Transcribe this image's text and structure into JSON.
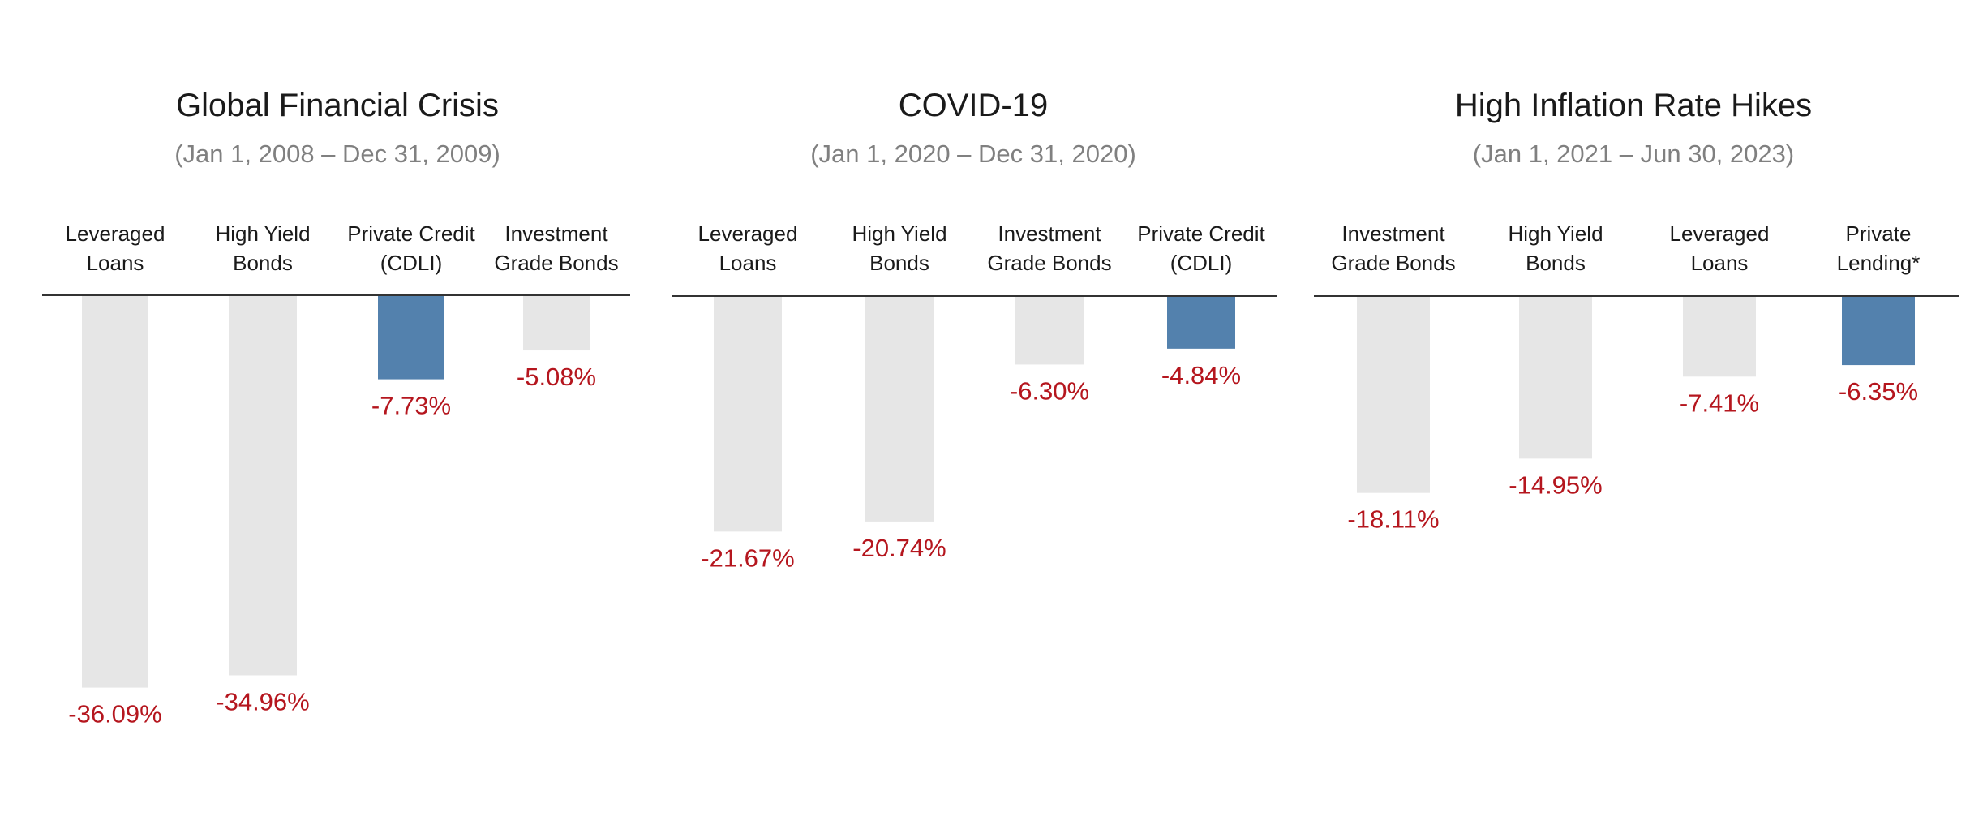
{
  "colors": {
    "highlight_bar": "#5381ad",
    "other_bar": "#e6e6e6",
    "value_label": "#b5161e",
    "title": "#1a1a1a",
    "subtitle": "#808080",
    "baseline": "#333333"
  },
  "chart_data": [
    {
      "type": "bar",
      "title": "Global Financial Crisis",
      "subtitle": "(Jan 1, 2008 – Dec 31, 2009)",
      "categories": [
        [
          "Leveraged",
          "Loans"
        ],
        [
          "High Yield",
          "Bonds"
        ],
        [
          "Private Credit",
          "(CDLI)"
        ],
        [
          "Investment",
          "Grade Bonds"
        ]
      ],
      "values": [
        -36.09,
        -34.96,
        -7.73,
        -5.08
      ],
      "value_labels": [
        "-36.09%",
        "-34.96%",
        "-7.73%",
        "-5.08%"
      ],
      "highlight_index": 2,
      "ylim": [
        -40,
        0
      ],
      "grid": false
    },
    {
      "type": "bar",
      "title": "COVID-19",
      "subtitle": "(Jan 1, 2020 – Dec 31, 2020)",
      "categories": [
        [
          "Leveraged",
          "Loans"
        ],
        [
          "High Yield",
          "Bonds"
        ],
        [
          "Investment",
          "Grade Bonds"
        ],
        [
          "Private Credit",
          "(CDLI)"
        ]
      ],
      "values": [
        -21.67,
        -20.74,
        -6.3,
        -4.84
      ],
      "value_labels": [
        "-21.67%",
        "-20.74%",
        "-6.30%",
        "-4.84%"
      ],
      "highlight_index": 3,
      "ylim": [
        -40,
        0
      ],
      "grid": false
    },
    {
      "type": "bar",
      "title": "High Inflation Rate Hikes",
      "subtitle": "(Jan 1, 2021 – Jun 30, 2023)",
      "categories": [
        [
          "Investment",
          "Grade Bonds"
        ],
        [
          "High Yield",
          "Bonds"
        ],
        [
          "Leveraged",
          "Loans"
        ],
        [
          "Private",
          "Lending*"
        ]
      ],
      "values": [
        -18.11,
        -14.95,
        -7.41,
        -6.35
      ],
      "value_labels": [
        "-18.11%",
        "-14.95%",
        "-7.41%",
        "-6.35%"
      ],
      "highlight_index": 3,
      "ylim": [
        -40,
        0
      ],
      "grid": false
    }
  ]
}
